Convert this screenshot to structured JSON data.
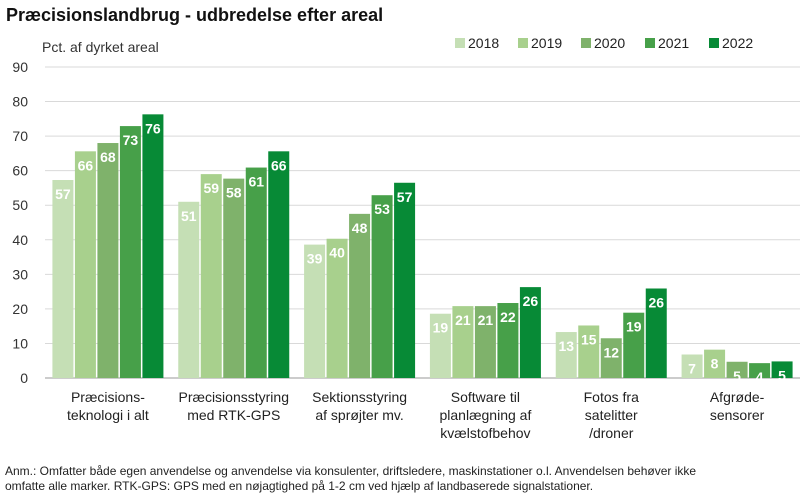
{
  "chart_data": {
    "type": "bar",
    "title": "Præcisionslandbrug - udbredelse efter areal",
    "ylabel": "Pct. af dyrket areal",
    "ylim": [
      0,
      90
    ],
    "yticks": [
      0,
      10,
      20,
      30,
      40,
      50,
      60,
      70,
      80,
      90
    ],
    "grid": true,
    "legend_position": "top-right",
    "categories": [
      [
        "Præcisions-",
        "teknologi i alt"
      ],
      [
        "Præcisionsstyring",
        "med RTK-GPS"
      ],
      [
        "Sektionsstyring",
        "af sprøjter mv."
      ],
      [
        "Software til",
        "planlægning af",
        "kvælstofbehov"
      ],
      [
        "Fotos fra",
        "satelitter",
        "/droner"
      ],
      [
        "Afgrøde-",
        "sensorer"
      ]
    ],
    "series": [
      {
        "name": "2018",
        "color": "#c5dfb5",
        "values": [
          57.3,
          51,
          38.6,
          18.6,
          13.3,
          6.8
        ],
        "labels": [
          "57",
          "51",
          "39",
          "19",
          "13",
          "7"
        ]
      },
      {
        "name": "2019",
        "color": "#a8d08d",
        "values": [
          65.6,
          59,
          40.3,
          20.8,
          15.2,
          8.2
        ],
        "labels": [
          "66",
          "59",
          "40",
          "21",
          "15",
          "8"
        ]
      },
      {
        "name": "2020",
        "color": "#7fb26b",
        "values": [
          68,
          57.7,
          47.5,
          20.8,
          11.5,
          4.7
        ],
        "labels": [
          "68",
          "58",
          "48",
          "21",
          "12",
          "5"
        ]
      },
      {
        "name": "2021",
        "color": "#47a049",
        "values": [
          72.9,
          60.9,
          52.9,
          21.7,
          18.9,
          4.3
        ],
        "labels": [
          "73",
          "61",
          "53",
          "22",
          "19",
          "4"
        ]
      },
      {
        "name": "2022",
        "color": "#078a36",
        "values": [
          76.3,
          65.6,
          56.5,
          26.3,
          25.9,
          4.8
        ],
        "labels": [
          "76",
          "66",
          "57",
          "26",
          "26",
          "5"
        ]
      }
    ]
  },
  "note": {
    "line1": "Anm.: Omfatter både egen anvendelse og anvendelse via konsulenter, driftsledere, maskinstationer o.l. Anvendelsen behøver ikke",
    "line2": "omfatte alle marker. RTK-GPS: GPS med en nøjagtighed på 1-2 cm ved hjælp af landbaserede signalstationer."
  }
}
